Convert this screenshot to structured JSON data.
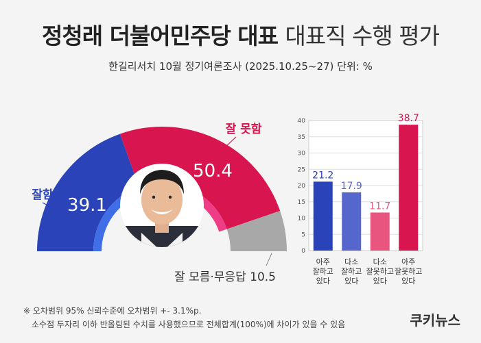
{
  "header": {
    "title_bold": "정청래 더불어민주당 대표",
    "title_light": "대표직 수행 평가",
    "subtitle": "한길리서치 10월 정기여론조사 (2025.10.25~27) 단위: %"
  },
  "chart_data": [
    {
      "type": "pie",
      "categories": [
        "잘함",
        "잘 못함",
        "잘 모름·무응답"
      ],
      "values": [
        39.1,
        50.4,
        10.5
      ],
      "labels": [
        "39.1",
        "50.4",
        "10.5"
      ],
      "category_labels": [
        "잘함",
        "잘 못함",
        "잘 모름·무응답 10.5"
      ],
      "colors": [
        "#2a43b8",
        "#d8154f",
        "#a8a8a8"
      ]
    },
    {
      "type": "bar",
      "categories": [
        "아주 잘하고 있다",
        "다소 잘하고 있다",
        "다소 잘못하고 있다",
        "아주 잘못하고 있다"
      ],
      "category_lines": [
        [
          "아주",
          "잘하고",
          "있다"
        ],
        [
          "다소",
          "잘하고",
          "있다"
        ],
        [
          "다소",
          "잘못하고",
          "있다"
        ],
        [
          "아주",
          "잘못하고",
          "있다"
        ]
      ],
      "values": [
        21.2,
        17.9,
        11.7,
        38.7
      ],
      "value_labels": [
        "21.2",
        "17.9",
        "11.7",
        "38.7"
      ],
      "ylim": [
        0,
        40
      ],
      "yticks": [
        0,
        5,
        10,
        15,
        20,
        25,
        30,
        35,
        40
      ],
      "colors": [
        "#2a43b8",
        "#5566cc",
        "#e8557e",
        "#d8154f"
      ]
    }
  ],
  "notes": {
    "line1": "※ 오차범위 95% 신뢰수준에 오차범위 +- 3.1%p.",
    "line2": "소수점 두자리 이하 반올림된 수치를 사용했으므로 전체합계(100%)에 차이가 있을 수 있음"
  },
  "brand": {
    "name": "쿠키뉴스"
  }
}
